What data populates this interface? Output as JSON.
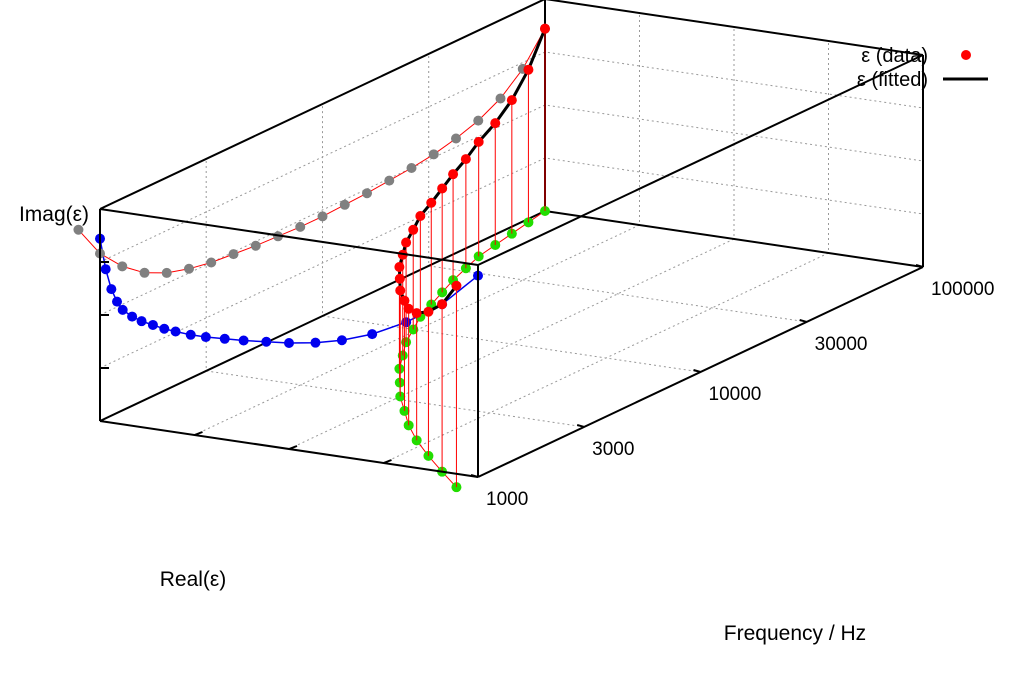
{
  "chart_data": {
    "type": "scatter3d",
    "title": "",
    "xlabel": "Frequency / Hz",
    "ylabel": "Real(ε)",
    "zlabel": "Imag(ε)",
    "x_scale": "log",
    "x_ticks": [
      {
        "value": 1000,
        "label": "1000"
      },
      {
        "value": 3000,
        "label": "3000"
      },
      {
        "value": 10000,
        "label": "10000"
      },
      {
        "value": 30000,
        "label": "30000"
      },
      {
        "value": 100000,
        "label": "100000"
      }
    ],
    "legend": [
      {
        "label": "ε (data)",
        "style": "points",
        "color": "#ff0000"
      },
      {
        "label": "ε (fitted)",
        "style": "line",
        "color": "#000000"
      }
    ],
    "colors": {
      "data": "#ff0000",
      "fitted": "#000000",
      "projection_real_imag": "#0000ee",
      "projection_freq_real": "#22dd00",
      "projection_freq_imag": "#808080",
      "impulse": "#ff0000",
      "box": "#000000",
      "grid": "#999999"
    },
    "series": [
      {
        "name": "ε (data)",
        "frequency_hz": [
          800,
          1000,
          1259,
          1585,
          1995,
          2512,
          3162,
          3981,
          5012,
          6310,
          7943,
          10000,
          12589,
          15849,
          19953,
          25119,
          31623,
          39811,
          50119,
          63096,
          79433,
          100000
        ],
        "real": [
          0.0,
          0.095,
          0.19,
          0.28,
          0.36,
          0.43,
          0.5,
          0.56,
          0.62,
          0.67,
          0.72,
          0.76,
          0.8,
          0.83,
          0.86,
          0.89,
          0.915,
          0.94,
          0.955,
          0.97,
          0.985,
          1.0
        ],
        "imag": [
          0.95,
          0.79,
          0.68,
          0.6,
          0.55,
          0.52,
          0.5,
          0.49,
          0.48,
          0.475,
          0.47,
          0.47,
          0.475,
          0.48,
          0.49,
          0.5,
          0.515,
          0.54,
          0.575,
          0.63,
          0.72,
          0.86
        ]
      }
    ]
  }
}
